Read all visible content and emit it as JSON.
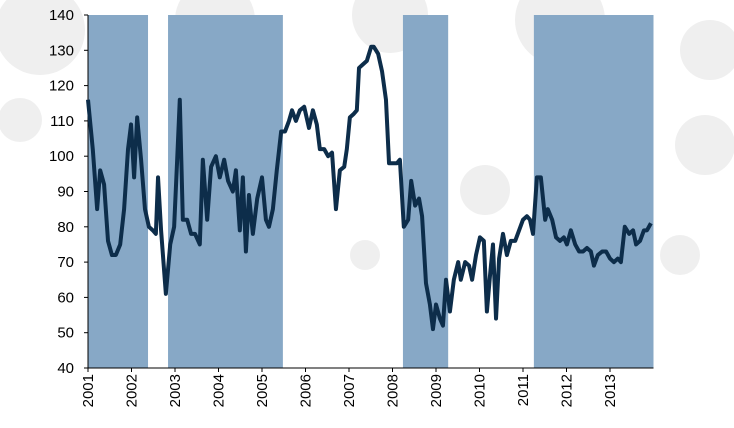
{
  "chart_data": {
    "type": "line",
    "x": [
      2001.0,
      2001.11,
      2001.21,
      2001.28,
      2001.37,
      2001.46,
      2001.55,
      2001.64,
      2001.74,
      2001.83,
      2001.92,
      2001.99,
      2002.06,
      2002.13,
      2002.22,
      2002.31,
      2002.4,
      2002.49,
      2002.56,
      2002.61,
      2002.68,
      2002.79,
      2002.89,
      2002.98,
      2003.05,
      2003.11,
      2003.18,
      2003.28,
      2003.37,
      2003.46,
      2003.57,
      2003.64,
      2003.74,
      2003.83,
      2003.94,
      2004.03,
      2004.13,
      2004.22,
      2004.33,
      2004.4,
      2004.49,
      2004.56,
      2004.63,
      2004.7,
      2004.79,
      2004.89,
      2005.0,
      2005.09,
      2005.16,
      2005.25,
      2005.34,
      2005.44,
      2005.53,
      2005.62,
      2005.69,
      2005.78,
      2005.87,
      2005.97,
      2006.08,
      2006.17,
      2006.26,
      2006.33,
      2006.43,
      2006.52,
      2006.61,
      2006.7,
      2006.79,
      2006.89,
      2006.95,
      2007.02,
      2007.11,
      2007.18,
      2007.23,
      2007.32,
      2007.41,
      2007.51,
      2007.57,
      2007.67,
      2007.76,
      2007.85,
      2007.92,
      2008.01,
      2008.1,
      2008.17,
      2008.26,
      2008.36,
      2008.43,
      2008.52,
      2008.61,
      2008.68,
      2008.77,
      2008.86,
      2008.93,
      2009.0,
      2009.09,
      2009.16,
      2009.23,
      2009.32,
      2009.41,
      2009.51,
      2009.57,
      2009.67,
      2009.76,
      2009.83,
      2009.92,
      2010.01,
      2010.1,
      2010.17,
      2010.24,
      2010.31,
      2010.38,
      2010.45,
      2010.54,
      2010.63,
      2010.72,
      2010.82,
      2010.91,
      2011.0,
      2011.09,
      2011.16,
      2011.23,
      2011.32,
      2011.41,
      2011.51,
      2011.57,
      2011.67,
      2011.76,
      2011.85,
      2011.94,
      2012.01,
      2012.1,
      2012.2,
      2012.29,
      2012.38,
      2012.47,
      2012.56,
      2012.63,
      2012.72,
      2012.82,
      2012.91,
      2013.0,
      2013.09,
      2013.18,
      2013.25,
      2013.34,
      2013.44,
      2013.53,
      2013.6,
      2013.69,
      2013.78,
      2013.85,
      2013.94
    ],
    "values": [
      116,
      102,
      85,
      96,
      92,
      76,
      72,
      72,
      75,
      85,
      102,
      109,
      94,
      111,
      99,
      85,
      80,
      79,
      78,
      94,
      79,
      61,
      75,
      80,
      99,
      116,
      82,
      82,
      78,
      78,
      75,
      99,
      82,
      97,
      100,
      94,
      99,
      93,
      90,
      96,
      79,
      94,
      73,
      89,
      78,
      88,
      94,
      82,
      80,
      85,
      96,
      107,
      107,
      110,
      113,
      110,
      113,
      114,
      108,
      113,
      109,
      102,
      102,
      100,
      101,
      85,
      96,
      97,
      102,
      111,
      112,
      113,
      125,
      126,
      127,
      131,
      131,
      129,
      124,
      116,
      98,
      98,
      98,
      99,
      80,
      82,
      93,
      86,
      88,
      83,
      64,
      58,
      51,
      58,
      54,
      52,
      65,
      56,
      65,
      70,
      65,
      70,
      69,
      65,
      72,
      77,
      76,
      56,
      66,
      75,
      54,
      71,
      78,
      72,
      76,
      76,
      79,
      82,
      83,
      82,
      78,
      94,
      94,
      82,
      85,
      82,
      77,
      76,
      77,
      75,
      79,
      75,
      73,
      73,
      74,
      73,
      69,
      72,
      73,
      73,
      71,
      70,
      71,
      70,
      80,
      78,
      79,
      75,
      76,
      79,
      79,
      81
    ],
    "color": "#0d2d4a",
    "shaded_regions": [
      [
        2001,
        2002.38
      ],
      [
        2002.84,
        2005.48
      ],
      [
        2008.24,
        2009.28
      ],
      [
        2011.25,
        2014
      ]
    ],
    "shade_color": "#87a8c6",
    "xlim": [
      2001,
      2014
    ],
    "xticks": [
      2001,
      2002,
      2003,
      2004,
      2005,
      2006,
      2007,
      2008,
      2009,
      2010,
      2011,
      2012,
      2013
    ],
    "ylim": [
      40,
      140
    ],
    "yticks": [
      40,
      50,
      60,
      70,
      80,
      90,
      100,
      110,
      120,
      130,
      140
    ]
  }
}
